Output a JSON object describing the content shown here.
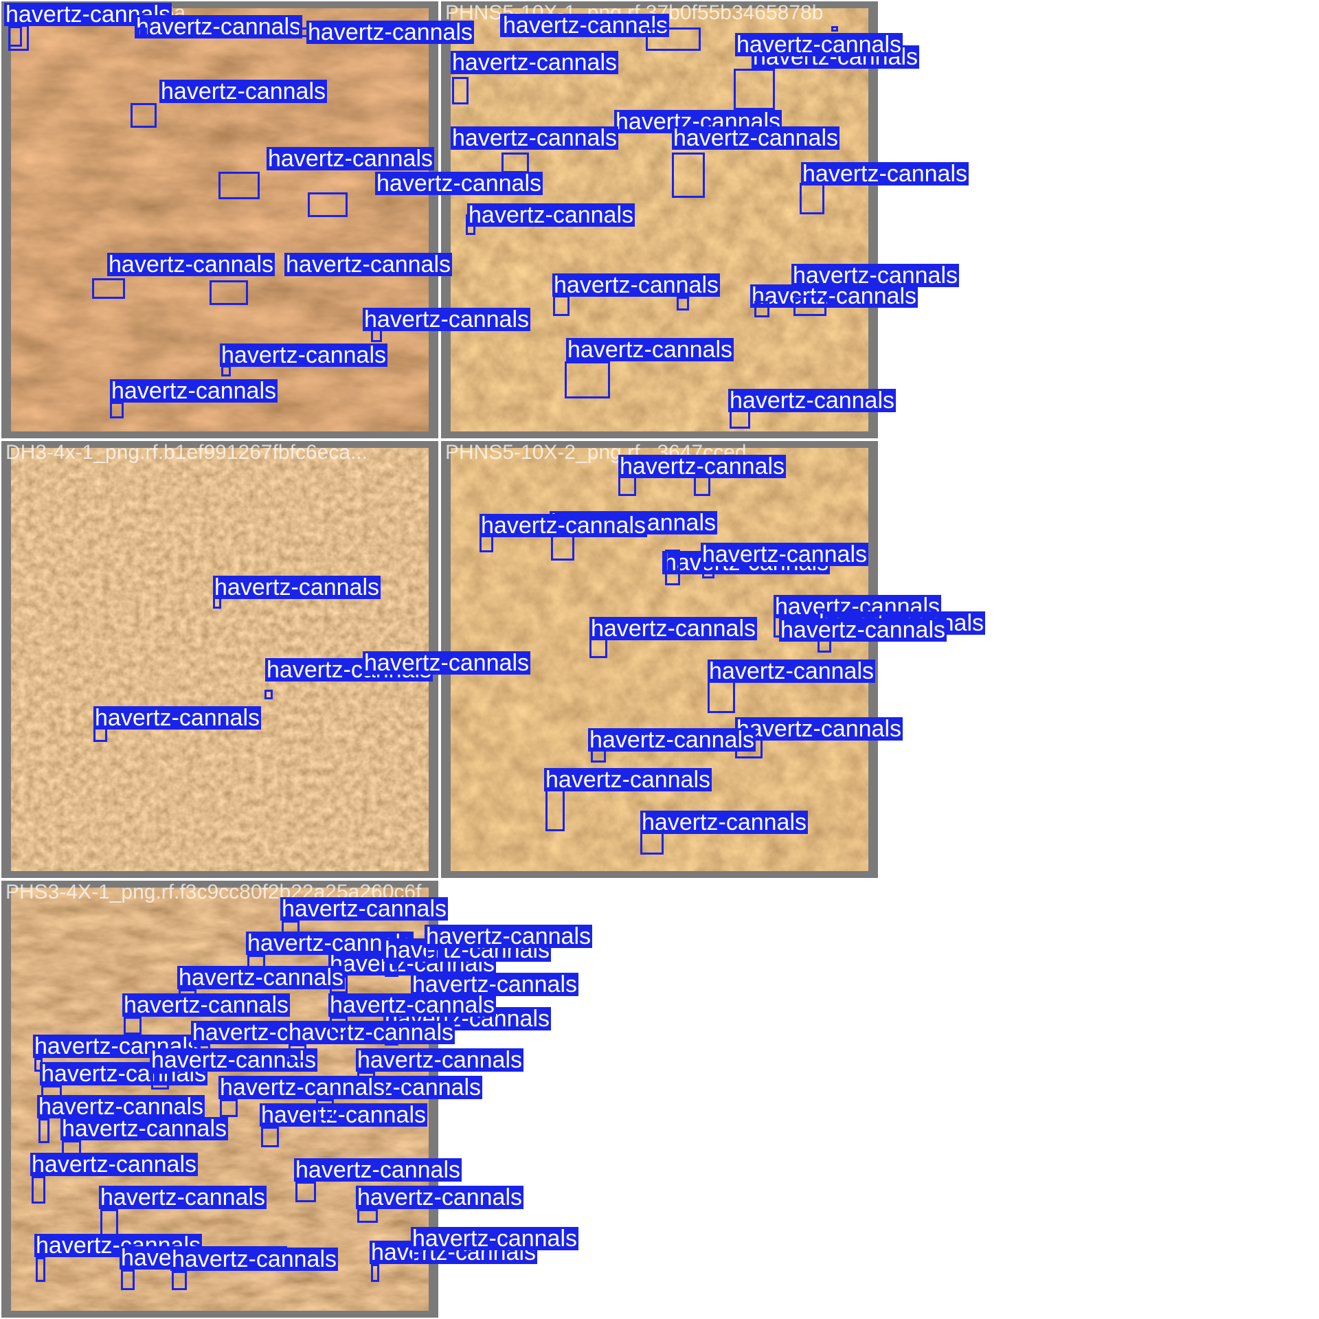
{
  "detection_label": "havertz-cannals",
  "colors": {
    "box": "#1a24e8",
    "label_text": "#ffffff",
    "tile_frame": "#7a7a7a",
    "title_text": "#dddddd"
  },
  "tiles": [
    {
      "id": "t1",
      "title": "-1_png.rf.ba34d56a...",
      "texture": "tex-a",
      "detection_count": 12
    },
    {
      "id": "t2",
      "title": "PHNS5-10X-1_png.rf.37b0f55b3465878b",
      "texture": "tex-b",
      "detection_count": 18
    },
    {
      "id": "t3",
      "title": "DH3-4x-1_png.rf.b1ef991267fbfc6eca...",
      "texture": "tex-c",
      "detection_count": 4
    },
    {
      "id": "t4",
      "title": "PHNS5-10X-2_png.rf...3647cced",
      "texture": "tex-b",
      "detection_count": 16
    },
    {
      "id": "t5",
      "title": "PHS3-4X-1_png.rf.f3c9cc80f2b22a25a260c6f",
      "texture": "tex-d",
      "detection_count": 70
    }
  ]
}
